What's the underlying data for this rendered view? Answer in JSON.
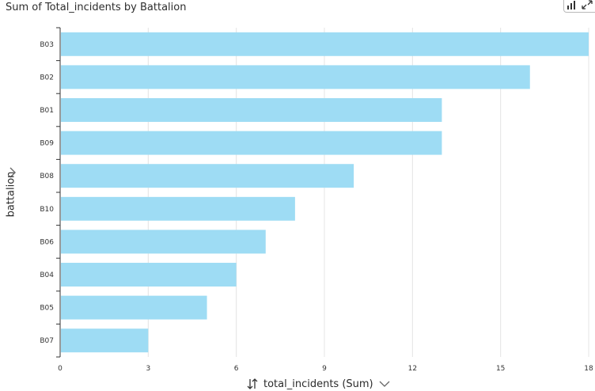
{
  "title": "Sum of Total_incidents by Battalion",
  "colors": {
    "bar": "#9edcf4",
    "grid": "#e4e4e4",
    "axis": "#333333"
  },
  "icons": {
    "corner": [
      "bar-chart-icon",
      "expand-icon"
    ],
    "sort": "sort-icon",
    "dropdown": "chevron-down-icon",
    "axis_menu": "chevron-right-icon"
  },
  "chart_data": {
    "type": "bar",
    "orientation": "horizontal",
    "title": "Sum of Total_incidents by Battalion",
    "xlabel": "total_incidents (Sum)",
    "ylabel": "battalion",
    "categories": [
      "B03",
      "B02",
      "B01",
      "B09",
      "B08",
      "B10",
      "B06",
      "B04",
      "B05",
      "B07"
    ],
    "values": [
      18,
      16,
      13,
      13,
      10,
      8,
      7,
      6,
      5,
      3
    ],
    "xlim": [
      0,
      18
    ],
    "xticks": [
      "0",
      "3",
      "6",
      "9",
      "12",
      "15",
      "18"
    ],
    "grid": true
  }
}
